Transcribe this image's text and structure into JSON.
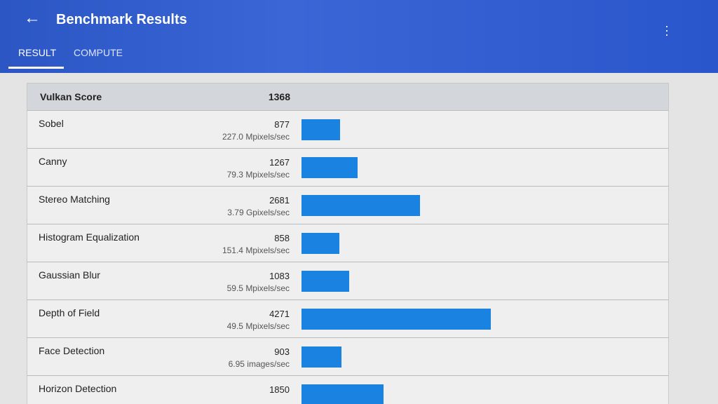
{
  "header": {
    "title": "Benchmark Results",
    "tabs": [
      "RESULT",
      "COMPUTE"
    ]
  },
  "summary": {
    "label": "Vulkan Score",
    "score": 1368
  },
  "rows": [
    {
      "name": "Sobel",
      "score": 877,
      "rate": "227.0 Mpixels/sec"
    },
    {
      "name": "Canny",
      "score": 1267,
      "rate": "79.3 Mpixels/sec"
    },
    {
      "name": "Stereo Matching",
      "score": 2681,
      "rate": "3.79 Gpixels/sec"
    },
    {
      "name": "Histogram Equalization",
      "score": 858,
      "rate": "151.4 Mpixels/sec"
    },
    {
      "name": "Gaussian Blur",
      "score": 1083,
      "rate": "59.5 Mpixels/sec"
    },
    {
      "name": "Depth of Field",
      "score": 4271,
      "rate": "49.5 Mpixels/sec"
    },
    {
      "name": "Face Detection",
      "score": 903,
      "rate": "6.95 images/sec"
    },
    {
      "name": "Horizon Detection",
      "score": 1850
    }
  ]
}
